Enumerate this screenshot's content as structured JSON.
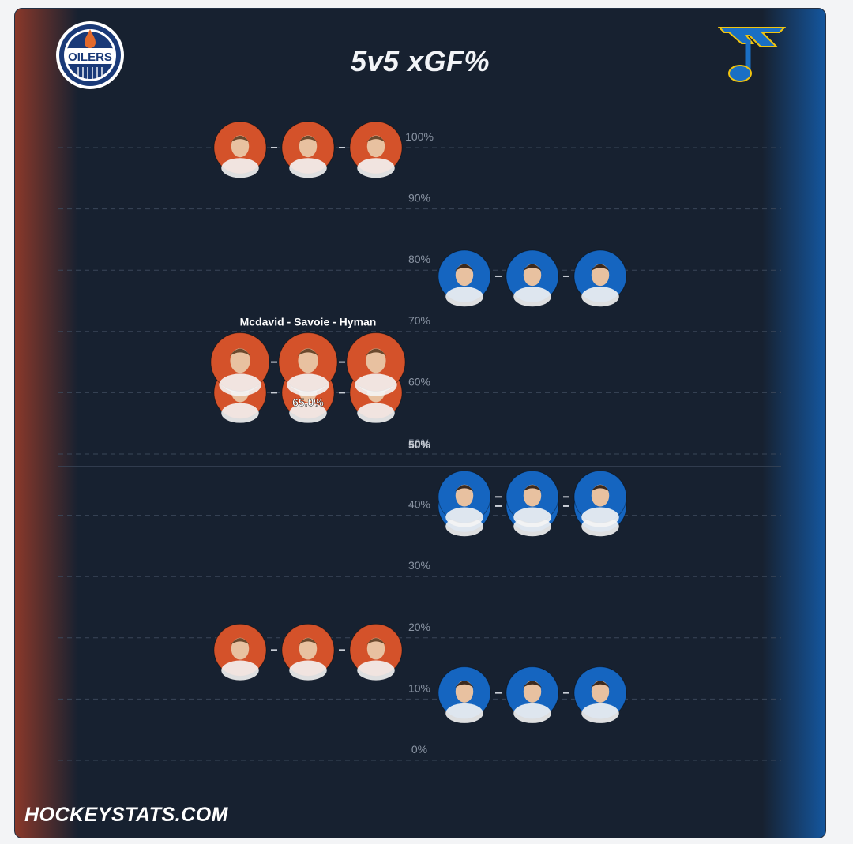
{
  "title": "5v5 xGF%",
  "watermark": "HOCKEYSTATS.COM",
  "teams": {
    "left": {
      "logo_icon": "oilers-logo-icon",
      "color": "#d4522a",
      "logo_text": "OILERS"
    },
    "right": {
      "logo_icon": "blues-note-logo-icon",
      "color": "#1565c0"
    }
  },
  "hover": {
    "label": "Mcdavid - Savoie - Hyman",
    "value": "65.0%"
  },
  "chart_data": {
    "type": "scatter",
    "title": "5v5 xGF%",
    "ylabel": "",
    "ylim": [
      0,
      100
    ],
    "yticks": [
      "0%",
      "10%",
      "20%",
      "30%",
      "40%",
      "50%",
      "60%",
      "70%",
      "80%",
      "90%",
      "100%"
    ],
    "midline_label": "50%",
    "grid": true,
    "series": [
      {
        "team": "left",
        "lines": [
          {
            "value": 100.0
          },
          {
            "value": 65.0,
            "label": "Mcdavid - Savoie - Hyman"
          },
          {
            "value": 60.0
          },
          {
            "value": 18.0
          }
        ]
      },
      {
        "team": "right",
        "lines": [
          {
            "value": 79.0
          },
          {
            "value": 43.0
          },
          {
            "value": 41.5
          },
          {
            "value": 11.0
          }
        ]
      }
    ]
  }
}
